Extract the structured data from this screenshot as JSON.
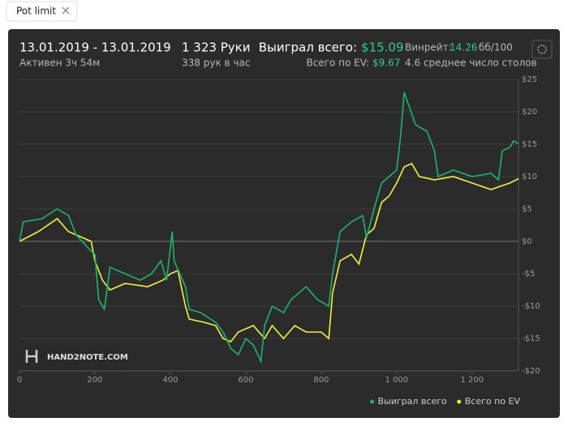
{
  "tab": {
    "label": "Pot limit"
  },
  "header": {
    "date_range": "13.01.2019 - 13.01.2019",
    "active": "Активен 3ч 54м",
    "hands": "1 323 Руки",
    "hands_per_hour": "338 рук в час",
    "won_label": "Выиграл всего:",
    "won_value": "$15.09",
    "ev_label": "Всего по EV:",
    "ev_value": "$9.67",
    "winrate_label": "Винрейт:",
    "winrate_value": "14.26",
    "winrate_unit": "бб/100",
    "tables": "4.6 среднее число столов"
  },
  "watermark": "HAND2NOTE.COM",
  "chart_data": {
    "type": "line",
    "xlim": [
      0,
      1323
    ],
    "ylim": [
      -20,
      25
    ],
    "xticks": [
      0,
      200,
      400,
      600,
      800,
      {
        "value": 1000,
        "label": "1 000"
      },
      {
        "value": 1200,
        "label": "1 200"
      }
    ],
    "yticks": [
      {
        "value": -20,
        "label": "-$20"
      },
      {
        "value": -15,
        "label": "-$15"
      },
      {
        "value": -10,
        "label": "-$10"
      },
      {
        "value": -5,
        "label": "-$5"
      },
      {
        "value": 0,
        "label": "$0"
      },
      {
        "value": 5,
        "label": "$5"
      },
      {
        "value": 10,
        "label": "$10"
      },
      {
        "value": 15,
        "label": "$15"
      },
      {
        "value": 20,
        "label": "$20"
      },
      {
        "value": 25,
        "label": "$25"
      }
    ],
    "grid": true,
    "legend": "bottom-right",
    "series": [
      {
        "name": "Выиграл всего",
        "color": "#1db36e",
        "x": [
          0,
          10,
          60,
          100,
          130,
          150,
          190,
          200,
          210,
          225,
          240,
          280,
          320,
          350,
          375,
          390,
          400,
          405,
          410,
          440,
          450,
          480,
          520,
          540,
          560,
          580,
          600,
          620,
          640,
          650,
          670,
          700,
          720,
          760,
          790,
          820,
          830,
          850,
          880,
          910,
          920,
          940,
          960,
          980,
          1000,
          1010,
          1020,
          1050,
          1080,
          1100,
          1110,
          1150,
          1200,
          1250,
          1270,
          1280,
          1300,
          1310,
          1323
        ],
        "values": [
          0,
          3,
          3.5,
          5,
          4,
          1,
          -1.5,
          -2,
          -9,
          -10.5,
          -4,
          -5,
          -6,
          -5,
          -3,
          -6,
          -1,
          1.5,
          -3,
          -7,
          -10.5,
          -11,
          -12.5,
          -14,
          -16.5,
          -17.5,
          -15,
          -16,
          -18.5,
          -13,
          -10,
          -11,
          -9,
          -7,
          -9,
          -10,
          -5,
          1.5,
          3,
          4,
          0.5,
          5,
          9,
          10,
          11,
          16,
          23,
          18,
          17,
          14,
          10,
          11,
          10,
          10.5,
          9.5,
          14,
          14.5,
          15.5,
          15.09
        ]
      },
      {
        "name": "Всего по EV",
        "color": "#f2f23c",
        "x": [
          0,
          50,
          100,
          130,
          190,
          200,
          220,
          240,
          280,
          340,
          380,
          400,
          420,
          440,
          450,
          490,
          520,
          540,
          560,
          580,
          600,
          620,
          650,
          670,
          700,
          730,
          760,
          800,
          820,
          830,
          850,
          880,
          900,
          920,
          940,
          960,
          980,
          1000,
          1020,
          1040,
          1060,
          1100,
          1150,
          1200,
          1250,
          1300,
          1323
        ],
        "values": [
          0,
          1.5,
          3.5,
          1.5,
          0,
          -3,
          -6,
          -7.5,
          -6.5,
          -7,
          -6,
          -5,
          -4.5,
          -10,
          -12,
          -12.5,
          -13,
          -15,
          -15.5,
          -14,
          -13.5,
          -13,
          -15,
          -13,
          -15,
          -13,
          -14,
          -14,
          -15,
          -8,
          -3,
          -2,
          -3.5,
          1,
          2,
          6,
          7,
          9,
          11.5,
          12,
          10,
          9.5,
          10,
          9,
          8,
          9,
          9.67
        ]
      }
    ]
  }
}
